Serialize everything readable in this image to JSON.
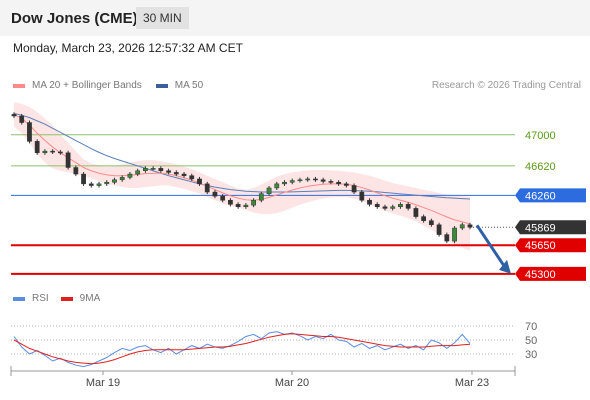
{
  "header": {
    "title": "Dow Jones (CME)",
    "timeframe": "30 MIN",
    "date": "Monday, March 23, 2026 12:57:32 AM CET"
  },
  "legend": {
    "ma20_label": "MA 20 + Bollinger Bands",
    "ma50_label": "MA 50",
    "credit": "Research © 2026 Trading Central"
  },
  "rsi_legend": {
    "rsi_label": "RSI",
    "ma_label": "9MA"
  },
  "colors": {
    "candle_up": "#3a8a3a",
    "candle_down": "#333333",
    "ma20": "#ff8a8a",
    "bollinger_fill": "#fde0e0",
    "ma50": "#5b7fb8",
    "pivot_line": "#2d6cdf",
    "support_line": "#e00000",
    "resistance_line": "#8cc06a",
    "resistance_text": "#5a9a1a",
    "current_price_bg": "#333333",
    "arrow": "#2f5fa5",
    "rsi": "#5b8de0",
    "rsi_ma": "#e02020"
  },
  "chart_data": {
    "type": "candlestick",
    "instrument": "Dow Jones (CME)",
    "timeframe": "30 MIN",
    "x_labels": [
      "Mar 19",
      "Mar 20",
      "Mar 23"
    ],
    "price_range": [
      45200,
      47450
    ],
    "current_price": 45869,
    "levels": [
      {
        "value": 47000,
        "label": "47000",
        "kind": "resistance"
      },
      {
        "value": 46620,
        "label": "46620",
        "kind": "resistance"
      },
      {
        "value": 46260,
        "label": "46260",
        "kind": "pivot"
      },
      {
        "value": 45650,
        "label": "45650",
        "kind": "support"
      },
      {
        "value": 45300,
        "label": "45300",
        "kind": "support"
      }
    ],
    "current_label": "45869",
    "close_series": [
      47230,
      47150,
      46920,
      46780,
      46800,
      46790,
      46780,
      46600,
      46520,
      46400,
      46380,
      46400,
      46420,
      46450,
      46480,
      46520,
      46560,
      46590,
      46590,
      46560,
      46540,
      46520,
      46500,
      46460,
      46400,
      46300,
      46250,
      46200,
      46150,
      46120,
      46140,
      46200,
      46280,
      46350,
      46400,
      46420,
      46440,
      46450,
      46460,
      46450,
      46430,
      46420,
      46400,
      46380,
      46300,
      46200,
      46150,
      46120,
      46100,
      46120,
      46150,
      46100,
      46000,
      45950,
      45900,
      45780,
      45700,
      45860,
      45900,
      45870
    ],
    "ma20_series": [
      47250,
      47200,
      47120,
      47020,
      46930,
      46850,
      46780,
      46720,
      46660,
      46600,
      46560,
      46530,
      46510,
      46500,
      46500,
      46505,
      46515,
      46525,
      46530,
      46530,
      46520,
      46500,
      46475,
      46445,
      46410,
      46370,
      46330,
      46290,
      46255,
      46225,
      46205,
      46200,
      46210,
      46235,
      46265,
      46295,
      46325,
      46350,
      46370,
      46385,
      46395,
      46400,
      46400,
      46395,
      46380,
      46355,
      46325,
      46290,
      46255,
      46225,
      46200,
      46175,
      46145,
      46110,
      46075,
      46035,
      45995,
      45960,
      45935,
      45910
    ],
    "bollinger_upper": [
      47400,
      47380,
      47340,
      47280,
      47200,
      47110,
      47000,
      46900,
      46800,
      46700,
      46650,
      46630,
      46620,
      46620,
      46640,
      46660,
      46680,
      46690,
      46690,
      46680,
      46660,
      46640,
      46610,
      46580,
      46540,
      46500,
      46460,
      46420,
      46380,
      46340,
      46330,
      46350,
      46390,
      46440,
      46490,
      46520,
      46540,
      46555,
      46565,
      46570,
      46570,
      46565,
      46560,
      46550,
      46540,
      46520,
      46500,
      46470,
      46440,
      46410,
      46390,
      46370,
      46350,
      46330,
      46310,
      46290,
      46270,
      46260,
      46250,
      46240
    ],
    "bollinger_lower": [
      47100,
      47020,
      46900,
      46760,
      46660,
      46590,
      46560,
      46540,
      46520,
      46500,
      46470,
      46430,
      46400,
      46380,
      46360,
      46350,
      46350,
      46360,
      46370,
      46380,
      46380,
      46360,
      46340,
      46310,
      46280,
      46240,
      46200,
      46160,
      46130,
      46110,
      46080,
      46050,
      46030,
      46030,
      46040,
      46070,
      46110,
      46145,
      46175,
      46200,
      46220,
      46235,
      46240,
      46240,
      46220,
      46190,
      46150,
      46110,
      46070,
      46040,
      46010,
      45980,
      45940,
      45890,
      45840,
      45780,
      45720,
      45660,
      45620,
      45580
    ],
    "ma50_series": [
      47260,
      47240,
      47210,
      47170,
      47130,
      47080,
      47030,
      46980,
      46930,
      46880,
      46830,
      46785,
      46745,
      46710,
      46680,
      46650,
      46620,
      46590,
      46560,
      46530,
      46500,
      46475,
      46450,
      46425,
      46400,
      46380,
      46360,
      46345,
      46330,
      46320,
      46310,
      46305,
      46300,
      46300,
      46300,
      46300,
      46302,
      46305,
      46308,
      46312,
      46315,
      46318,
      46320,
      46320,
      46318,
      46315,
      46310,
      46303,
      46295,
      46287,
      46278,
      46270,
      46262,
      46253,
      46245,
      46238,
      46230,
      46225,
      46220,
      46215
    ],
    "rsi": {
      "ticks": [
        "70",
        "50",
        "30"
      ],
      "range": [
        0,
        100
      ],
      "values": [
        55,
        40,
        30,
        35,
        28,
        20,
        24,
        18,
        14,
        12,
        15,
        20,
        25,
        32,
        38,
        35,
        40,
        42,
        36,
        32,
        38,
        30,
        36,
        42,
        38,
        44,
        40,
        38,
        42,
        48,
        55,
        58,
        52,
        60,
        62,
        58,
        60,
        56,
        50,
        55,
        52,
        58,
        50,
        48,
        40,
        45,
        38,
        42,
        36,
        40,
        44,
        38,
        42,
        36,
        50,
        46,
        38,
        46,
        58,
        45
      ],
      "ma_values": [
        50,
        44,
        38,
        34,
        30,
        26,
        23,
        20,
        18,
        17,
        16,
        17,
        19,
        22,
        26,
        30,
        33,
        35,
        36,
        36,
        36,
        36,
        36,
        37,
        38,
        39,
        40,
        40,
        41,
        43,
        45,
        48,
        51,
        54,
        56,
        58,
        59,
        58,
        57,
        56,
        55,
        55,
        54,
        52,
        50,
        48,
        46,
        44,
        42,
        41,
        40,
        40,
        40,
        40,
        41,
        42,
        42,
        42,
        43,
        44
      ]
    }
  }
}
